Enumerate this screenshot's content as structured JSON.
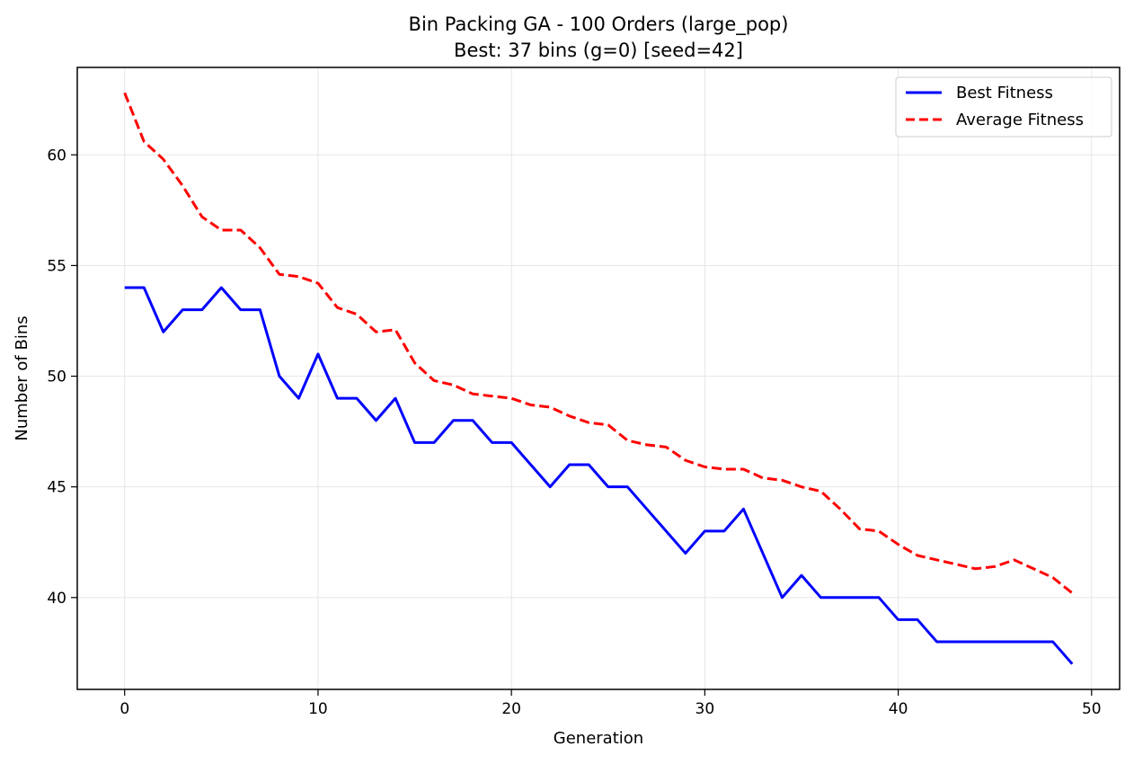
{
  "chart_data": {
    "type": "line",
    "title": "Bin Packing GA - 100 Orders (large_pop)",
    "subtitle": "Best: 37 bins (g=0) [seed=42]",
    "xlabel": "Generation",
    "ylabel": "Number of Bins",
    "xlim": [
      -2.45,
      51.45
    ],
    "ylim": [
      35.85,
      63.95
    ],
    "xticks": [
      0,
      10,
      20,
      30,
      40,
      50
    ],
    "yticks": [
      40,
      45,
      50,
      55,
      60
    ],
    "grid": true,
    "legend_position": "top-right",
    "x": [
      0,
      1,
      2,
      3,
      4,
      5,
      6,
      7,
      8,
      9,
      10,
      11,
      12,
      13,
      14,
      15,
      16,
      17,
      18,
      19,
      20,
      21,
      22,
      23,
      24,
      25,
      26,
      27,
      28,
      29,
      30,
      31,
      32,
      33,
      34,
      35,
      36,
      37,
      38,
      39,
      40,
      41,
      42,
      43,
      44,
      45,
      46,
      47,
      48,
      49
    ],
    "series": [
      {
        "name": "Best Fitness",
        "color": "#0000ff",
        "style": "solid",
        "values": [
          54,
          54,
          52,
          53,
          53,
          54,
          53,
          53,
          50,
          49,
          51,
          49,
          49,
          48,
          49,
          47,
          47,
          48,
          48,
          47,
          47,
          46,
          45,
          46,
          46,
          45,
          45,
          44,
          43,
          42,
          43,
          43,
          44,
          42,
          40,
          41,
          40,
          40,
          40,
          40,
          39,
          39,
          38,
          38,
          38,
          38,
          38,
          38,
          38,
          37
        ]
      },
      {
        "name": "Average Fitness",
        "color": "#ff0000",
        "style": "dashed",
        "values": [
          62.8,
          60.6,
          59.8,
          58.6,
          57.2,
          56.6,
          56.6,
          55.8,
          54.6,
          54.5,
          54.2,
          53.1,
          52.8,
          52.0,
          52.1,
          50.6,
          49.8,
          49.6,
          49.2,
          49.1,
          49.0,
          48.7,
          48.6,
          48.2,
          47.9,
          47.8,
          47.1,
          46.9,
          46.8,
          46.2,
          45.9,
          45.8,
          45.8,
          45.4,
          45.3,
          45.0,
          44.8,
          44.0,
          43.1,
          43.0,
          42.4,
          41.9,
          41.7,
          41.5,
          41.3,
          41.4,
          41.7,
          41.3,
          40.9,
          40.2
        ]
      }
    ]
  }
}
